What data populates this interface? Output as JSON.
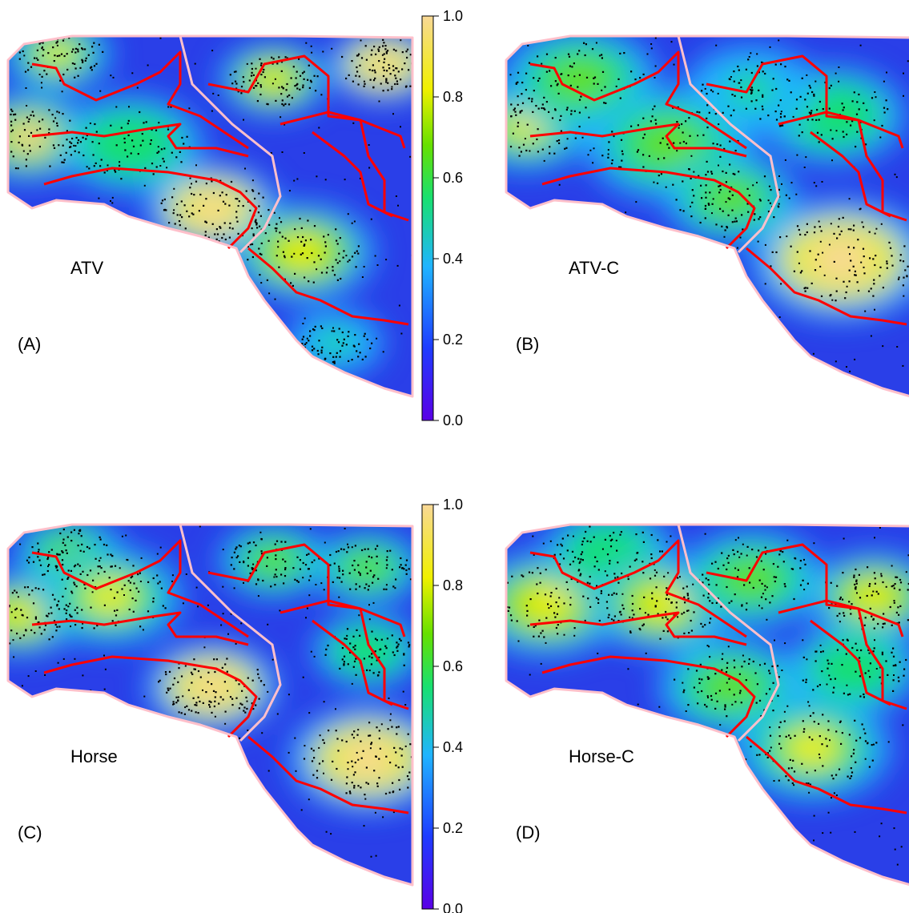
{
  "panels": [
    {
      "id": "A",
      "tag": "(A)",
      "name": "ATV",
      "colorbar": true,
      "hotspots": [
        [
          0.05,
          0.28,
          0.85,
          55
        ],
        [
          0.12,
          0.05,
          0.7,
          45
        ],
        [
          0.5,
          0.48,
          1.0,
          55
        ],
        [
          0.72,
          0.6,
          0.8,
          60
        ],
        [
          0.65,
          0.12,
          0.8,
          45
        ],
        [
          0.92,
          0.08,
          0.95,
          45
        ],
        [
          0.8,
          0.85,
          0.5,
          40
        ],
        [
          0.3,
          0.3,
          0.55,
          60
        ]
      ]
    },
    {
      "id": "B",
      "tag": "(B)",
      "name": "ATV-C",
      "colorbar": false,
      "hotspots": [
        [
          0.05,
          0.25,
          0.7,
          55
        ],
        [
          0.18,
          0.12,
          0.6,
          65
        ],
        [
          0.4,
          0.3,
          0.6,
          70
        ],
        [
          0.55,
          0.45,
          0.65,
          55
        ],
        [
          0.82,
          0.62,
          0.95,
          75
        ],
        [
          0.8,
          0.22,
          0.55,
          60
        ],
        [
          0.6,
          0.15,
          0.45,
          55
        ]
      ]
    },
    {
      "id": "C",
      "tag": "(C)",
      "name": "Horse",
      "colorbar": true,
      "hotspots": [
        [
          0.03,
          0.25,
          0.8,
          50
        ],
        [
          0.15,
          0.08,
          0.65,
          45
        ],
        [
          0.25,
          0.2,
          0.7,
          60
        ],
        [
          0.5,
          0.45,
          0.95,
          55
        ],
        [
          0.88,
          0.65,
          0.95,
          65
        ],
        [
          0.65,
          0.1,
          0.65,
          45
        ],
        [
          0.88,
          0.12,
          0.6,
          45
        ],
        [
          0.88,
          0.35,
          0.55,
          45
        ]
      ]
    },
    {
      "id": "D",
      "tag": "(D)",
      "name": "Horse-C",
      "colorbar": false,
      "hotspots": [
        [
          0.1,
          0.22,
          0.75,
          65
        ],
        [
          0.25,
          0.08,
          0.55,
          55
        ],
        [
          0.38,
          0.22,
          0.75,
          60
        ],
        [
          0.55,
          0.45,
          0.6,
          60
        ],
        [
          0.75,
          0.62,
          0.7,
          65
        ],
        [
          0.6,
          0.15,
          0.6,
          60
        ],
        [
          0.9,
          0.2,
          0.8,
          55
        ],
        [
          0.85,
          0.4,
          0.55,
          55
        ]
      ]
    }
  ],
  "colorbar": {
    "ticks": [
      "1.0",
      "0.8",
      "0.6",
      "0.4",
      "0.2",
      "0.0"
    ],
    "tick_values": [
      1.0,
      0.8,
      0.6,
      0.4,
      0.2,
      0.0
    ],
    "range": [
      0.0,
      1.0
    ],
    "palette": [
      "#5a00e6",
      "#1e3cff",
      "#20b4ff",
      "#18e070",
      "#66e000",
      "#f0f000",
      "#f8d896"
    ]
  },
  "colors": {
    "boundary_outer": "#ffc0cb",
    "boundary_inner": "#ff0000",
    "points": "#000000"
  }
}
